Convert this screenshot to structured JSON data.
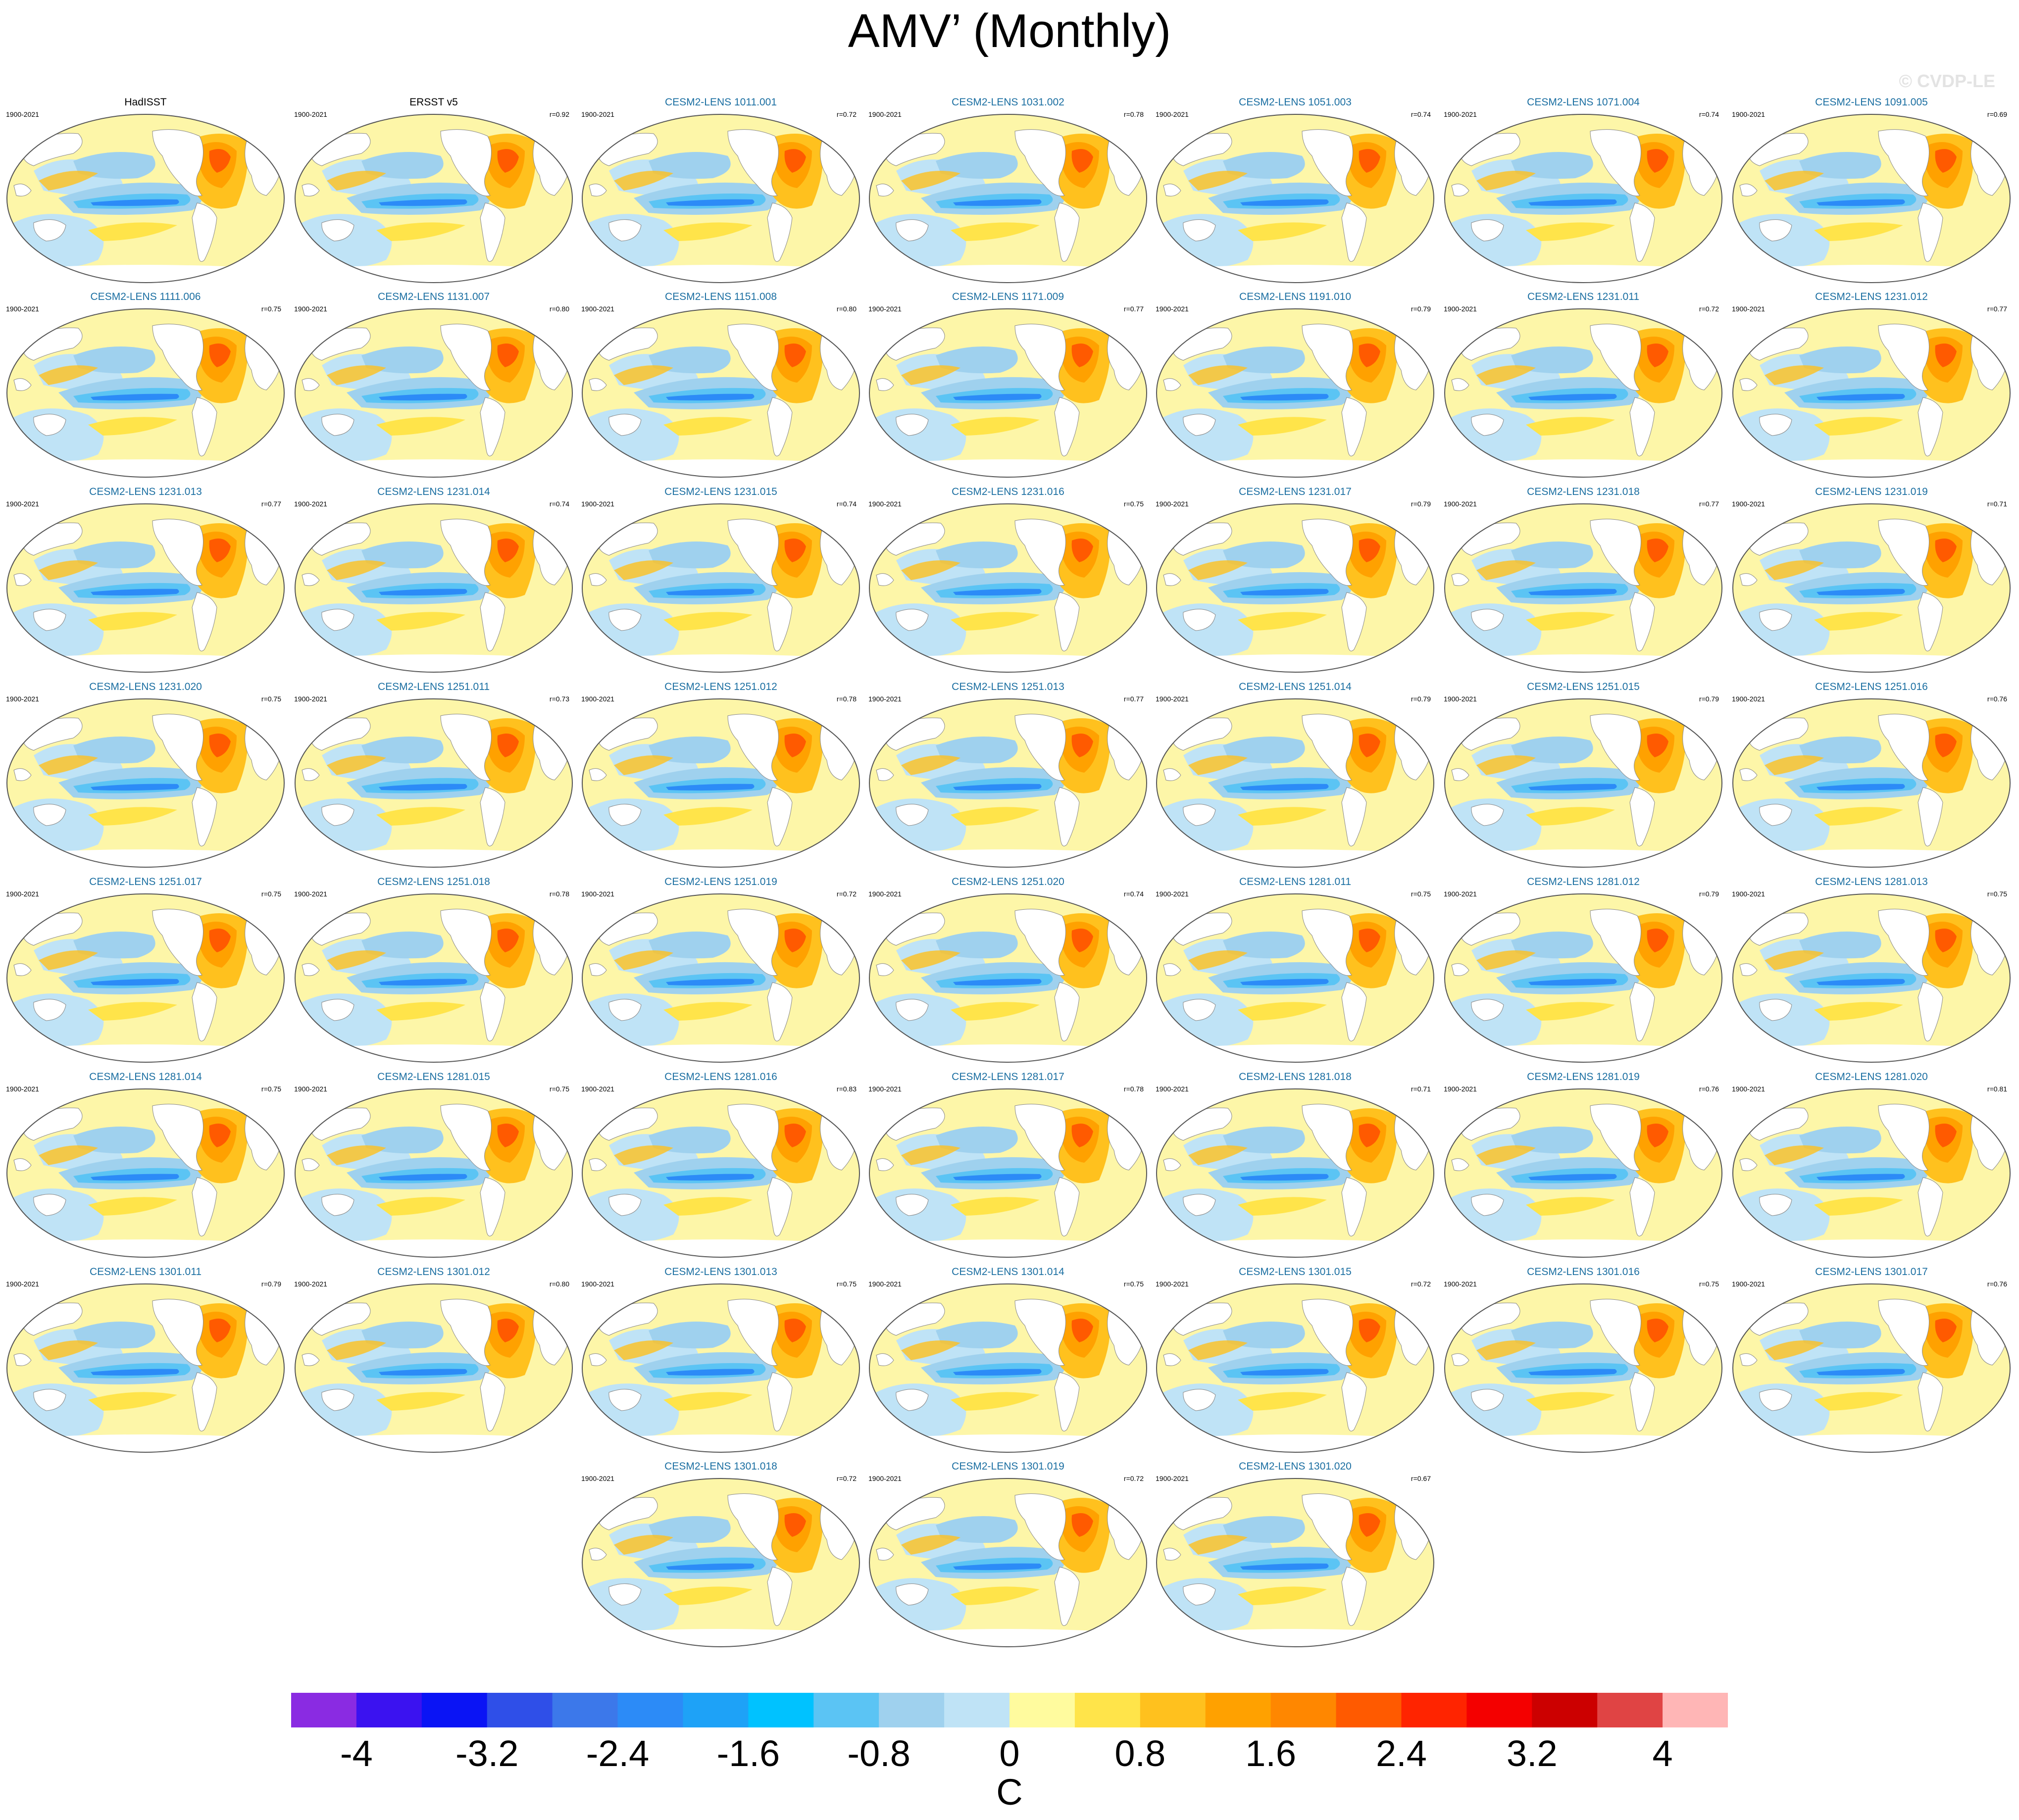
{
  "title": "AMV’ (Monthly)",
  "watermark": "© CVDP-LE",
  "units": "C",
  "colorbar": {
    "colors": [
      "#8a2be2",
      "#3b12f0",
      "#0a14f5",
      "#2f4fe8",
      "#3c78ea",
      "#2c8bf7",
      "#1ea2f7",
      "#00c2ff",
      "#5bc4f4",
      "#9fd1ee",
      "#bfe3f6",
      "#fffb9e",
      "#ffe44a",
      "#ffc11e",
      "#ffa100",
      "#ff8700",
      "#ff5a00",
      "#ff2400",
      "#f40000",
      "#cc0000",
      "#e04444",
      "#ffb6b6"
    ],
    "tick_labels": [
      "-4",
      "-3.2",
      "-2.4",
      "-1.6",
      "-0.8",
      "0",
      "0.8",
      "1.6",
      "2.4",
      "3.2",
      "4"
    ]
  },
  "panels": [
    {
      "label": "HadISST",
      "period": "1900-2021",
      "r": "",
      "type": "obs"
    },
    {
      "label": "ERSST v5",
      "period": "1900-2021",
      "r": "r=0.92",
      "type": "obs"
    },
    {
      "label": "CESM2-LENS 1011.001",
      "period": "1900-2021",
      "r": "r=0.72",
      "type": "model"
    },
    {
      "label": "CESM2-LENS 1031.002",
      "period": "1900-2021",
      "r": "r=0.78",
      "type": "model"
    },
    {
      "label": "CESM2-LENS 1051.003",
      "period": "1900-2021",
      "r": "r=0.74",
      "type": "model"
    },
    {
      "label": "CESM2-LENS 1071.004",
      "period": "1900-2021",
      "r": "r=0.74",
      "type": "model"
    },
    {
      "label": "CESM2-LENS 1091.005",
      "period": "1900-2021",
      "r": "r=0.69",
      "type": "model"
    },
    {
      "label": "CESM2-LENS 1111.006",
      "period": "1900-2021",
      "r": "r=0.75",
      "type": "model"
    },
    {
      "label": "CESM2-LENS 1131.007",
      "period": "1900-2021",
      "r": "r=0.80",
      "type": "model"
    },
    {
      "label": "CESM2-LENS 1151.008",
      "period": "1900-2021",
      "r": "r=0.80",
      "type": "model"
    },
    {
      "label": "CESM2-LENS 1171.009",
      "period": "1900-2021",
      "r": "r=0.77",
      "type": "model"
    },
    {
      "label": "CESM2-LENS 1191.010",
      "period": "1900-2021",
      "r": "r=0.79",
      "type": "model"
    },
    {
      "label": "CESM2-LENS 1231.011",
      "period": "1900-2021",
      "r": "r=0.72",
      "type": "model"
    },
    {
      "label": "CESM2-LENS 1231.012",
      "period": "1900-2021",
      "r": "r=0.77",
      "type": "model"
    },
    {
      "label": "CESM2-LENS 1231.013",
      "period": "1900-2021",
      "r": "r=0.77",
      "type": "model"
    },
    {
      "label": "CESM2-LENS 1231.014",
      "period": "1900-2021",
      "r": "r=0.74",
      "type": "model"
    },
    {
      "label": "CESM2-LENS 1231.015",
      "period": "1900-2021",
      "r": "r=0.74",
      "type": "model"
    },
    {
      "label": "CESM2-LENS 1231.016",
      "period": "1900-2021",
      "r": "r=0.75",
      "type": "model"
    },
    {
      "label": "CESM2-LENS 1231.017",
      "period": "1900-2021",
      "r": "r=0.79",
      "type": "model"
    },
    {
      "label": "CESM2-LENS 1231.018",
      "period": "1900-2021",
      "r": "r=0.77",
      "type": "model"
    },
    {
      "label": "CESM2-LENS 1231.019",
      "period": "1900-2021",
      "r": "r=0.71",
      "type": "model"
    },
    {
      "label": "CESM2-LENS 1231.020",
      "period": "1900-2021",
      "r": "r=0.75",
      "type": "model"
    },
    {
      "label": "CESM2-LENS 1251.011",
      "period": "1900-2021",
      "r": "r=0.73",
      "type": "model"
    },
    {
      "label": "CESM2-LENS 1251.012",
      "period": "1900-2021",
      "r": "r=0.78",
      "type": "model"
    },
    {
      "label": "CESM2-LENS 1251.013",
      "period": "1900-2021",
      "r": "r=0.77",
      "type": "model"
    },
    {
      "label": "CESM2-LENS 1251.014",
      "period": "1900-2021",
      "r": "r=0.79",
      "type": "model"
    },
    {
      "label": "CESM2-LENS 1251.015",
      "period": "1900-2021",
      "r": "r=0.79",
      "type": "model"
    },
    {
      "label": "CESM2-LENS 1251.016",
      "period": "1900-2021",
      "r": "r=0.76",
      "type": "model"
    },
    {
      "label": "CESM2-LENS 1251.017",
      "period": "1900-2021",
      "r": "r=0.75",
      "type": "model"
    },
    {
      "label": "CESM2-LENS 1251.018",
      "period": "1900-2021",
      "r": "r=0.78",
      "type": "model"
    },
    {
      "label": "CESM2-LENS 1251.019",
      "period": "1900-2021",
      "r": "r=0.72",
      "type": "model"
    },
    {
      "label": "CESM2-LENS 1251.020",
      "period": "1900-2021",
      "r": "r=0.74",
      "type": "model"
    },
    {
      "label": "CESM2-LENS 1281.011",
      "period": "1900-2021",
      "r": "r=0.75",
      "type": "model"
    },
    {
      "label": "CESM2-LENS 1281.012",
      "period": "1900-2021",
      "r": "r=0.79",
      "type": "model"
    },
    {
      "label": "CESM2-LENS 1281.013",
      "period": "1900-2021",
      "r": "r=0.75",
      "type": "model"
    },
    {
      "label": "CESM2-LENS 1281.014",
      "period": "1900-2021",
      "r": "r=0.75",
      "type": "model"
    },
    {
      "label": "CESM2-LENS 1281.015",
      "period": "1900-2021",
      "r": "r=0.75",
      "type": "model"
    },
    {
      "label": "CESM2-LENS 1281.016",
      "period": "1900-2021",
      "r": "r=0.83",
      "type": "model"
    },
    {
      "label": "CESM2-LENS 1281.017",
      "period": "1900-2021",
      "r": "r=0.78",
      "type": "model"
    },
    {
      "label": "CESM2-LENS 1281.018",
      "period": "1900-2021",
      "r": "r=0.71",
      "type": "model"
    },
    {
      "label": "CESM2-LENS 1281.019",
      "period": "1900-2021",
      "r": "r=0.76",
      "type": "model"
    },
    {
      "label": "CESM2-LENS 1281.020",
      "period": "1900-2021",
      "r": "r=0.81",
      "type": "model"
    },
    {
      "label": "CESM2-LENS 1301.011",
      "period": "1900-2021",
      "r": "r=0.79",
      "type": "model"
    },
    {
      "label": "CESM2-LENS 1301.012",
      "period": "1900-2021",
      "r": "r=0.80",
      "type": "model"
    },
    {
      "label": "CESM2-LENS 1301.013",
      "period": "1900-2021",
      "r": "r=0.75",
      "type": "model"
    },
    {
      "label": "CESM2-LENS 1301.014",
      "period": "1900-2021",
      "r": "r=0.75",
      "type": "model"
    },
    {
      "label": "CESM2-LENS 1301.015",
      "period": "1900-2021",
      "r": "r=0.72",
      "type": "model"
    },
    {
      "label": "CESM2-LENS 1301.016",
      "period": "1900-2021",
      "r": "r=0.75",
      "type": "model"
    },
    {
      "label": "CESM2-LENS 1301.017",
      "period": "1900-2021",
      "r": "r=0.76",
      "type": "model"
    },
    {
      "label": "CESM2-LENS 1301.018",
      "period": "1900-2021",
      "r": "r=0.72",
      "type": "model"
    },
    {
      "label": "CESM2-LENS 1301.019",
      "period": "1900-2021",
      "r": "r=0.72",
      "type": "model"
    },
    {
      "label": "CESM2-LENS 1301.020",
      "period": "1900-2021",
      "r": "r=0.67",
      "type": "model"
    }
  ]
}
